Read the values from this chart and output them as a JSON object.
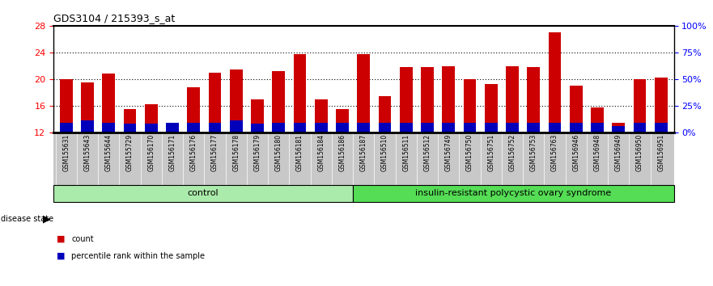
{
  "title": "GDS3104 / 215393_s_at",
  "samples": [
    "GSM155631",
    "GSM155643",
    "GSM155644",
    "GSM155729",
    "GSM156170",
    "GSM156171",
    "GSM156176",
    "GSM156177",
    "GSM156178",
    "GSM156179",
    "GSM156180",
    "GSM156181",
    "GSM156184",
    "GSM156186",
    "GSM156187",
    "GSM156510",
    "GSM156511",
    "GSM156512",
    "GSM156749",
    "GSM156750",
    "GSM156751",
    "GSM156752",
    "GSM156753",
    "GSM156763",
    "GSM156946",
    "GSM156948",
    "GSM156949",
    "GSM156950",
    "GSM156951"
  ],
  "count_values": [
    20.0,
    19.5,
    20.8,
    15.5,
    16.2,
    13.2,
    18.8,
    21.0,
    21.5,
    17.0,
    21.2,
    23.8,
    17.0,
    15.5,
    23.8,
    17.5,
    21.8,
    21.8,
    22.0,
    20.0,
    19.3,
    22.0,
    21.8,
    27.0,
    19.0,
    15.8,
    13.5,
    20.0,
    20.2
  ],
  "percentile_values": [
    13.5,
    13.8,
    13.5,
    13.3,
    13.3,
    13.5,
    13.5,
    13.5,
    13.8,
    13.3,
    13.5,
    13.5,
    13.5,
    13.5,
    13.5,
    13.5,
    13.5,
    13.5,
    13.5,
    13.5,
    13.5,
    13.5,
    13.5,
    13.5,
    13.5,
    13.5,
    13.0,
    13.5,
    13.5
  ],
  "group_labels": [
    "control",
    "insulin-resistant polycystic ovary syndrome"
  ],
  "group_split": 14,
  "ctrl_color": "#AAEAAA",
  "disease_color": "#55DD55",
  "bar_color_red": "#CC0000",
  "bar_color_blue": "#0000BB",
  "ylim_left": [
    12,
    28
  ],
  "yticks_left": [
    12,
    16,
    20,
    24,
    28
  ],
  "ylim_right": [
    0,
    100
  ],
  "yticks_right": [
    0,
    25,
    50,
    75,
    100
  ],
  "ytick_labels_right": [
    "0%",
    "25%",
    "50%",
    "75%",
    "100%"
  ],
  "bar_width": 0.6
}
